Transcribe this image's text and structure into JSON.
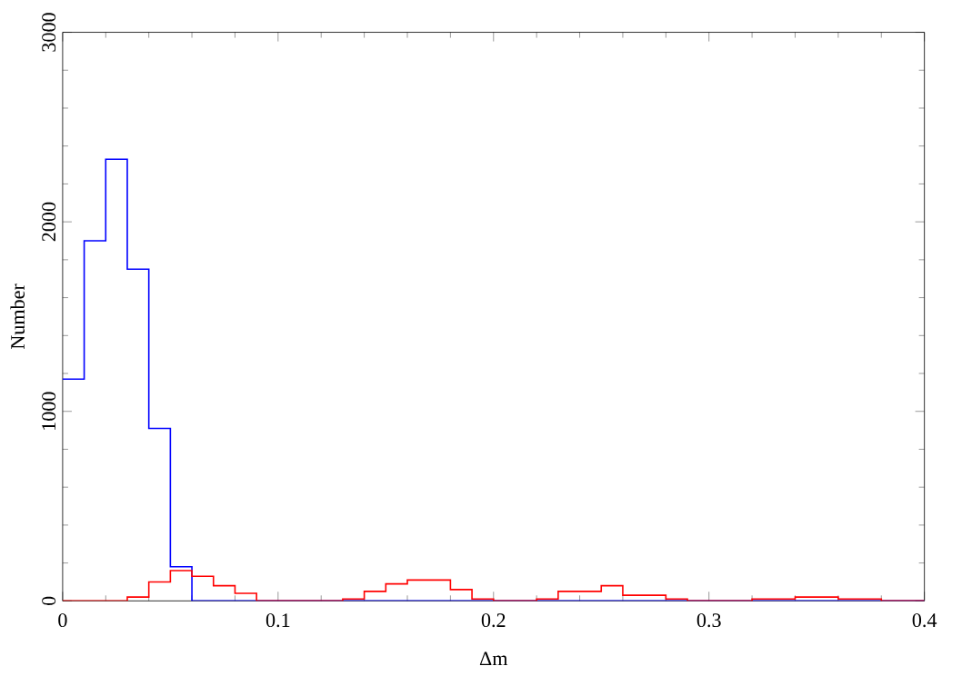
{
  "chart_data": {
    "type": "histogram",
    "xlabel": "Δm",
    "ylabel": "Number",
    "bins": [
      0,
      0.01,
      0.02,
      0.03,
      0.04,
      0.05,
      0.06,
      0.07,
      0.08,
      0.09,
      0.1,
      0.11,
      0.12,
      0.13,
      0.14,
      0.15,
      0.16,
      0.17,
      0.18,
      0.19,
      0.2,
      0.21,
      0.22,
      0.23,
      0.24,
      0.25,
      0.26,
      0.27,
      0.28,
      0.29,
      0.3,
      0.31,
      0.32,
      0.33,
      0.34,
      0.35,
      0.36,
      0.37,
      0.38,
      0.39,
      0.4
    ],
    "series": [
      {
        "color": "#0000ff",
        "values": [
          1170,
          1900,
          2330,
          1750,
          910,
          180,
          0,
          0,
          0,
          0,
          0,
          0,
          0,
          0,
          0,
          0,
          0,
          0,
          0,
          0,
          0,
          0,
          0,
          0,
          0,
          0,
          0,
          0,
          0,
          0,
          0,
          0,
          0,
          0,
          0,
          0,
          0,
          0,
          0,
          0
        ]
      },
      {
        "color": "#ff0000",
        "values": [
          0,
          0,
          0,
          20,
          100,
          160,
          130,
          80,
          40,
          0,
          0,
          0,
          0,
          10,
          50,
          90,
          110,
          110,
          60,
          10,
          0,
          0,
          10,
          50,
          50,
          80,
          30,
          30,
          10,
          0,
          0,
          0,
          10,
          10,
          20,
          20,
          10,
          10,
          0,
          0
        ]
      }
    ],
    "xlim": [
      0,
      0.4
    ],
    "xticks": [
      0,
      0.1,
      0.2,
      0.3,
      0.4
    ],
    "ylim": [
      0,
      3000
    ],
    "yticks": [
      0,
      1000,
      2000,
      3000
    ],
    "grid": false
  }
}
